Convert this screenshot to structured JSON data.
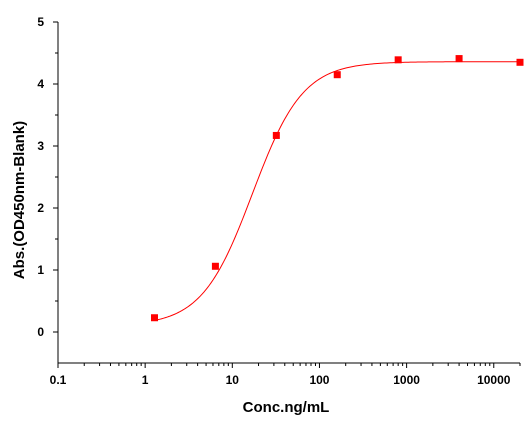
{
  "chart_data": {
    "type": "scatter",
    "xlabel": "Conc.ng/mL",
    "ylabel": "Abs.(OD450nm-Blank)",
    "x_scale": "log",
    "xlim": [
      0.1,
      20000
    ],
    "ylim": [
      -0.5,
      5
    ],
    "x_ticks": [
      "0.1",
      "1",
      "10",
      "100",
      "1000",
      "10000"
    ],
    "y_ticks": [
      "0",
      "1",
      "2",
      "3",
      "4",
      "5"
    ],
    "grid": false,
    "legend": "none",
    "series": [
      {
        "x": [
          1.28,
          6.4,
          32,
          160,
          800,
          4000,
          20000
        ],
        "y": [
          0.23,
          1.06,
          3.17,
          4.15,
          4.39,
          4.41,
          4.35
        ],
        "marker": "square",
        "color": "#ff0000"
      }
    ],
    "fit_curve": {
      "model": "4PL",
      "bottom": 0.1,
      "top": 4.36,
      "ec50": 17,
      "hill": 1.5,
      "color": "#ff0000"
    }
  }
}
